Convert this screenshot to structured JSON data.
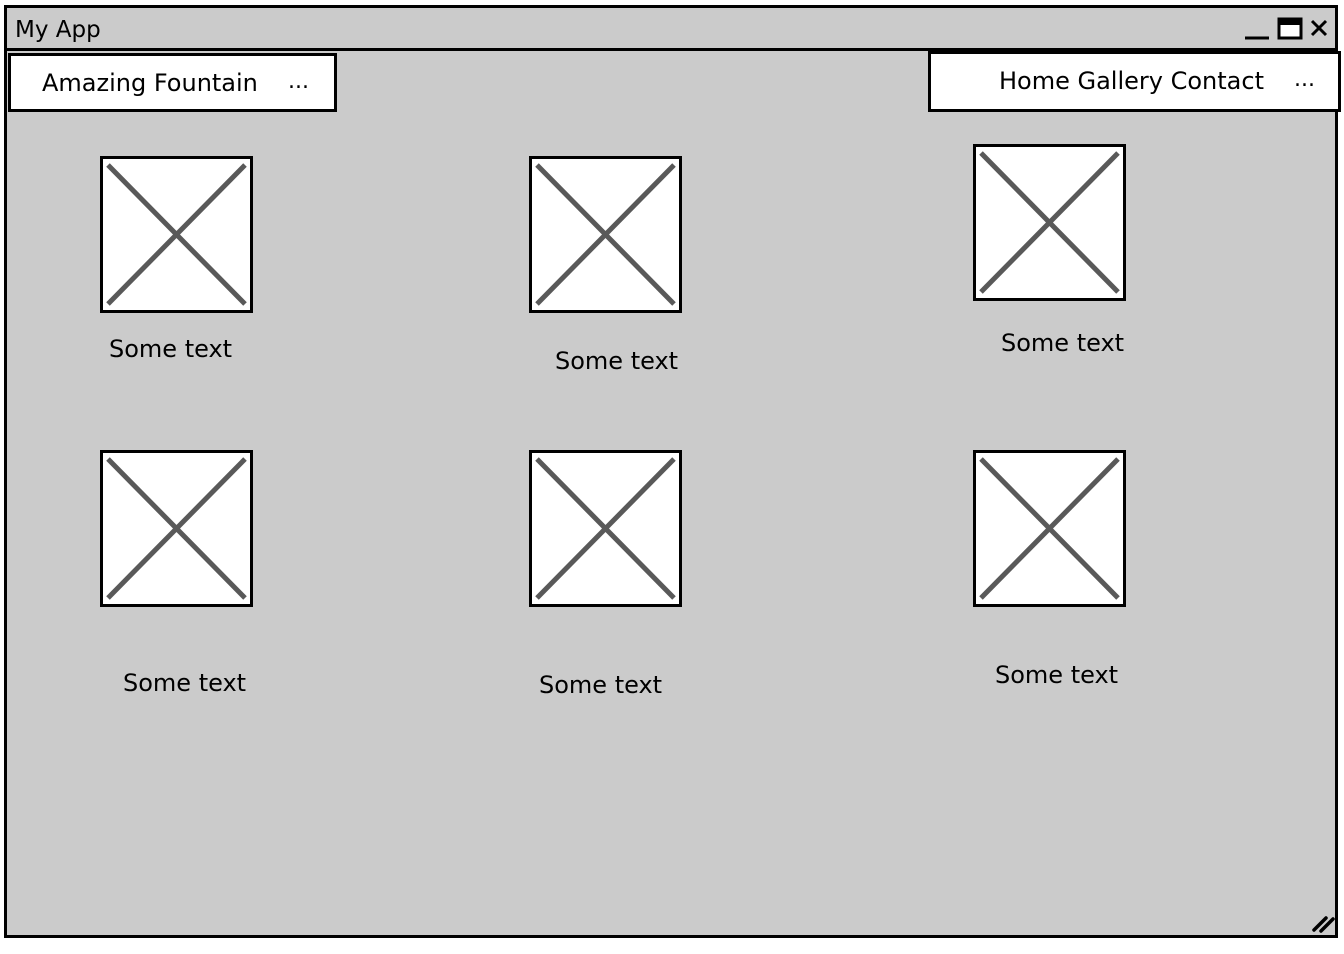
{
  "window": {
    "title": "My App",
    "controls": {
      "minimize_icon": "minimize-icon",
      "maximize_icon": "maximize-icon",
      "close_icon": "close-icon"
    }
  },
  "header": {
    "brand": {
      "label": "Amazing Fountain",
      "more": "..."
    },
    "nav": {
      "label": "Home Gallery Contact",
      "more": "..."
    }
  },
  "gallery": {
    "items": [
      {
        "caption": "Some text",
        "icon": "image-placeholder-icon"
      },
      {
        "caption": "Some text",
        "icon": "image-placeholder-icon"
      },
      {
        "caption": "Some text",
        "icon": "image-placeholder-icon"
      },
      {
        "caption": "Some text",
        "icon": "image-placeholder-icon"
      },
      {
        "caption": "Some text",
        "icon": "image-placeholder-icon"
      },
      {
        "caption": "Some text",
        "icon": "image-placeholder-icon"
      }
    ]
  },
  "colors": {
    "window_background": "#cbcbcb",
    "panel_background": "#ffffff",
    "border": "#000000",
    "placeholder_cross": "#595959"
  }
}
